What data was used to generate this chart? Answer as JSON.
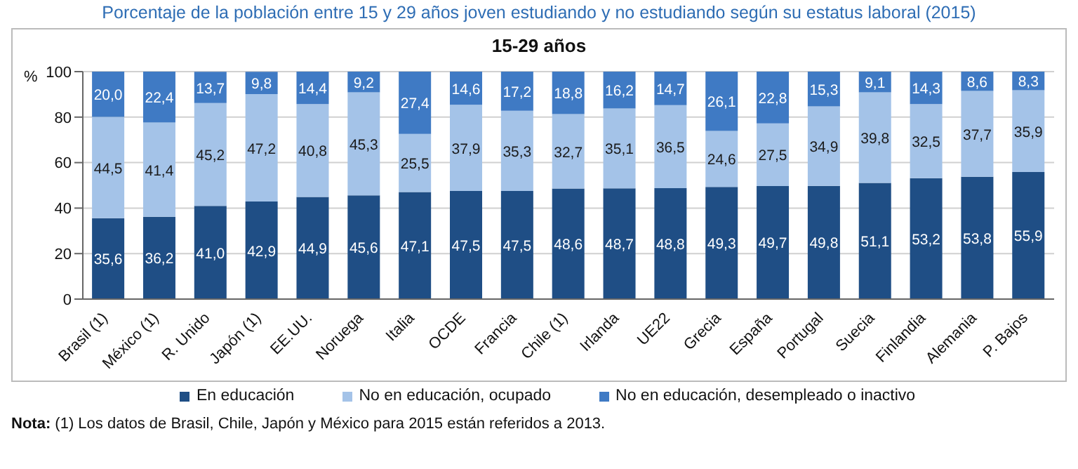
{
  "chart_data": {
    "type": "bar",
    "stacked": true,
    "subtitle": "Porcentaje de la población entre 15 y 29 años joven estudiando y no estudiando según su estatus laboral (2015)",
    "title": "15-29 años",
    "ylabel": "%",
    "categories": [
      "Brasil (1)",
      "México (1)",
      "R. Unido",
      "Japón (1)",
      "EE.UU.",
      "Noruega",
      "Italia",
      "OCDE",
      "Francia",
      "Chile (1)",
      "Irlanda",
      "UE22",
      "Grecia",
      "España",
      "Portugal",
      "Suecia",
      "Finlandia",
      "Alemania",
      "P. Bajos"
    ],
    "series": [
      {
        "name": "En educación",
        "color": "#1f4e85",
        "values": [
          35.6,
          36.2,
          41.0,
          42.9,
          44.9,
          45.6,
          47.1,
          47.5,
          47.5,
          48.6,
          48.7,
          48.8,
          49.3,
          49.7,
          49.8,
          51.1,
          53.2,
          53.8,
          55.9
        ],
        "value_labels": [
          "35,6",
          "36,2",
          "41,0",
          "42,9",
          "44,9",
          "45,6",
          "47,1",
          "47,5",
          "47,5",
          "48,6",
          "48,7",
          "48,8",
          "49,3",
          "49,7",
          "49,8",
          "51,1",
          "53,2",
          "53,8",
          "55,9"
        ]
      },
      {
        "name": "No en educación, ocupado",
        "color": "#a4c3e8",
        "values": [
          44.5,
          41.4,
          45.2,
          47.2,
          40.8,
          45.3,
          25.5,
          37.9,
          35.3,
          32.7,
          35.1,
          36.5,
          24.6,
          27.5,
          34.9,
          39.8,
          32.5,
          37.7,
          35.9
        ],
        "value_labels": [
          "44,5",
          "41,4",
          "45,2",
          "47,2",
          "40,8",
          "45,3",
          "25,5",
          "37,9",
          "35,3",
          "32,7",
          "35,1",
          "36,5",
          "24,6",
          "27,5",
          "34,9",
          "39,8",
          "32,5",
          "37,7",
          "35,9"
        ]
      },
      {
        "name": "No en educación, desempleado o inactivo",
        "color": "#3f7ac4",
        "values": [
          20.0,
          22.4,
          13.7,
          9.8,
          14.4,
          9.2,
          27.4,
          14.6,
          17.2,
          18.8,
          16.2,
          14.7,
          26.1,
          22.8,
          15.3,
          9.1,
          14.3,
          8.6,
          8.3
        ],
        "value_labels": [
          "20,0",
          "22,4",
          "13,7",
          "9,8",
          "14,4",
          "9,2",
          "27,4",
          "14,6",
          "17,2",
          "18,8",
          "16,2",
          "14,7",
          "26,1",
          "22,8",
          "15,3",
          "9,1",
          "14,3",
          "8,6",
          "8,3"
        ]
      }
    ],
    "ylim": [
      0,
      100
    ],
    "yticks": [
      0,
      20,
      40,
      60,
      80,
      100
    ],
    "grid": "y",
    "legend": "bottom",
    "annotations": [
      "Nota: (1) Los datos de Brasil, Chile, Japón y México para 2015 están referidos a 2013."
    ]
  }
}
